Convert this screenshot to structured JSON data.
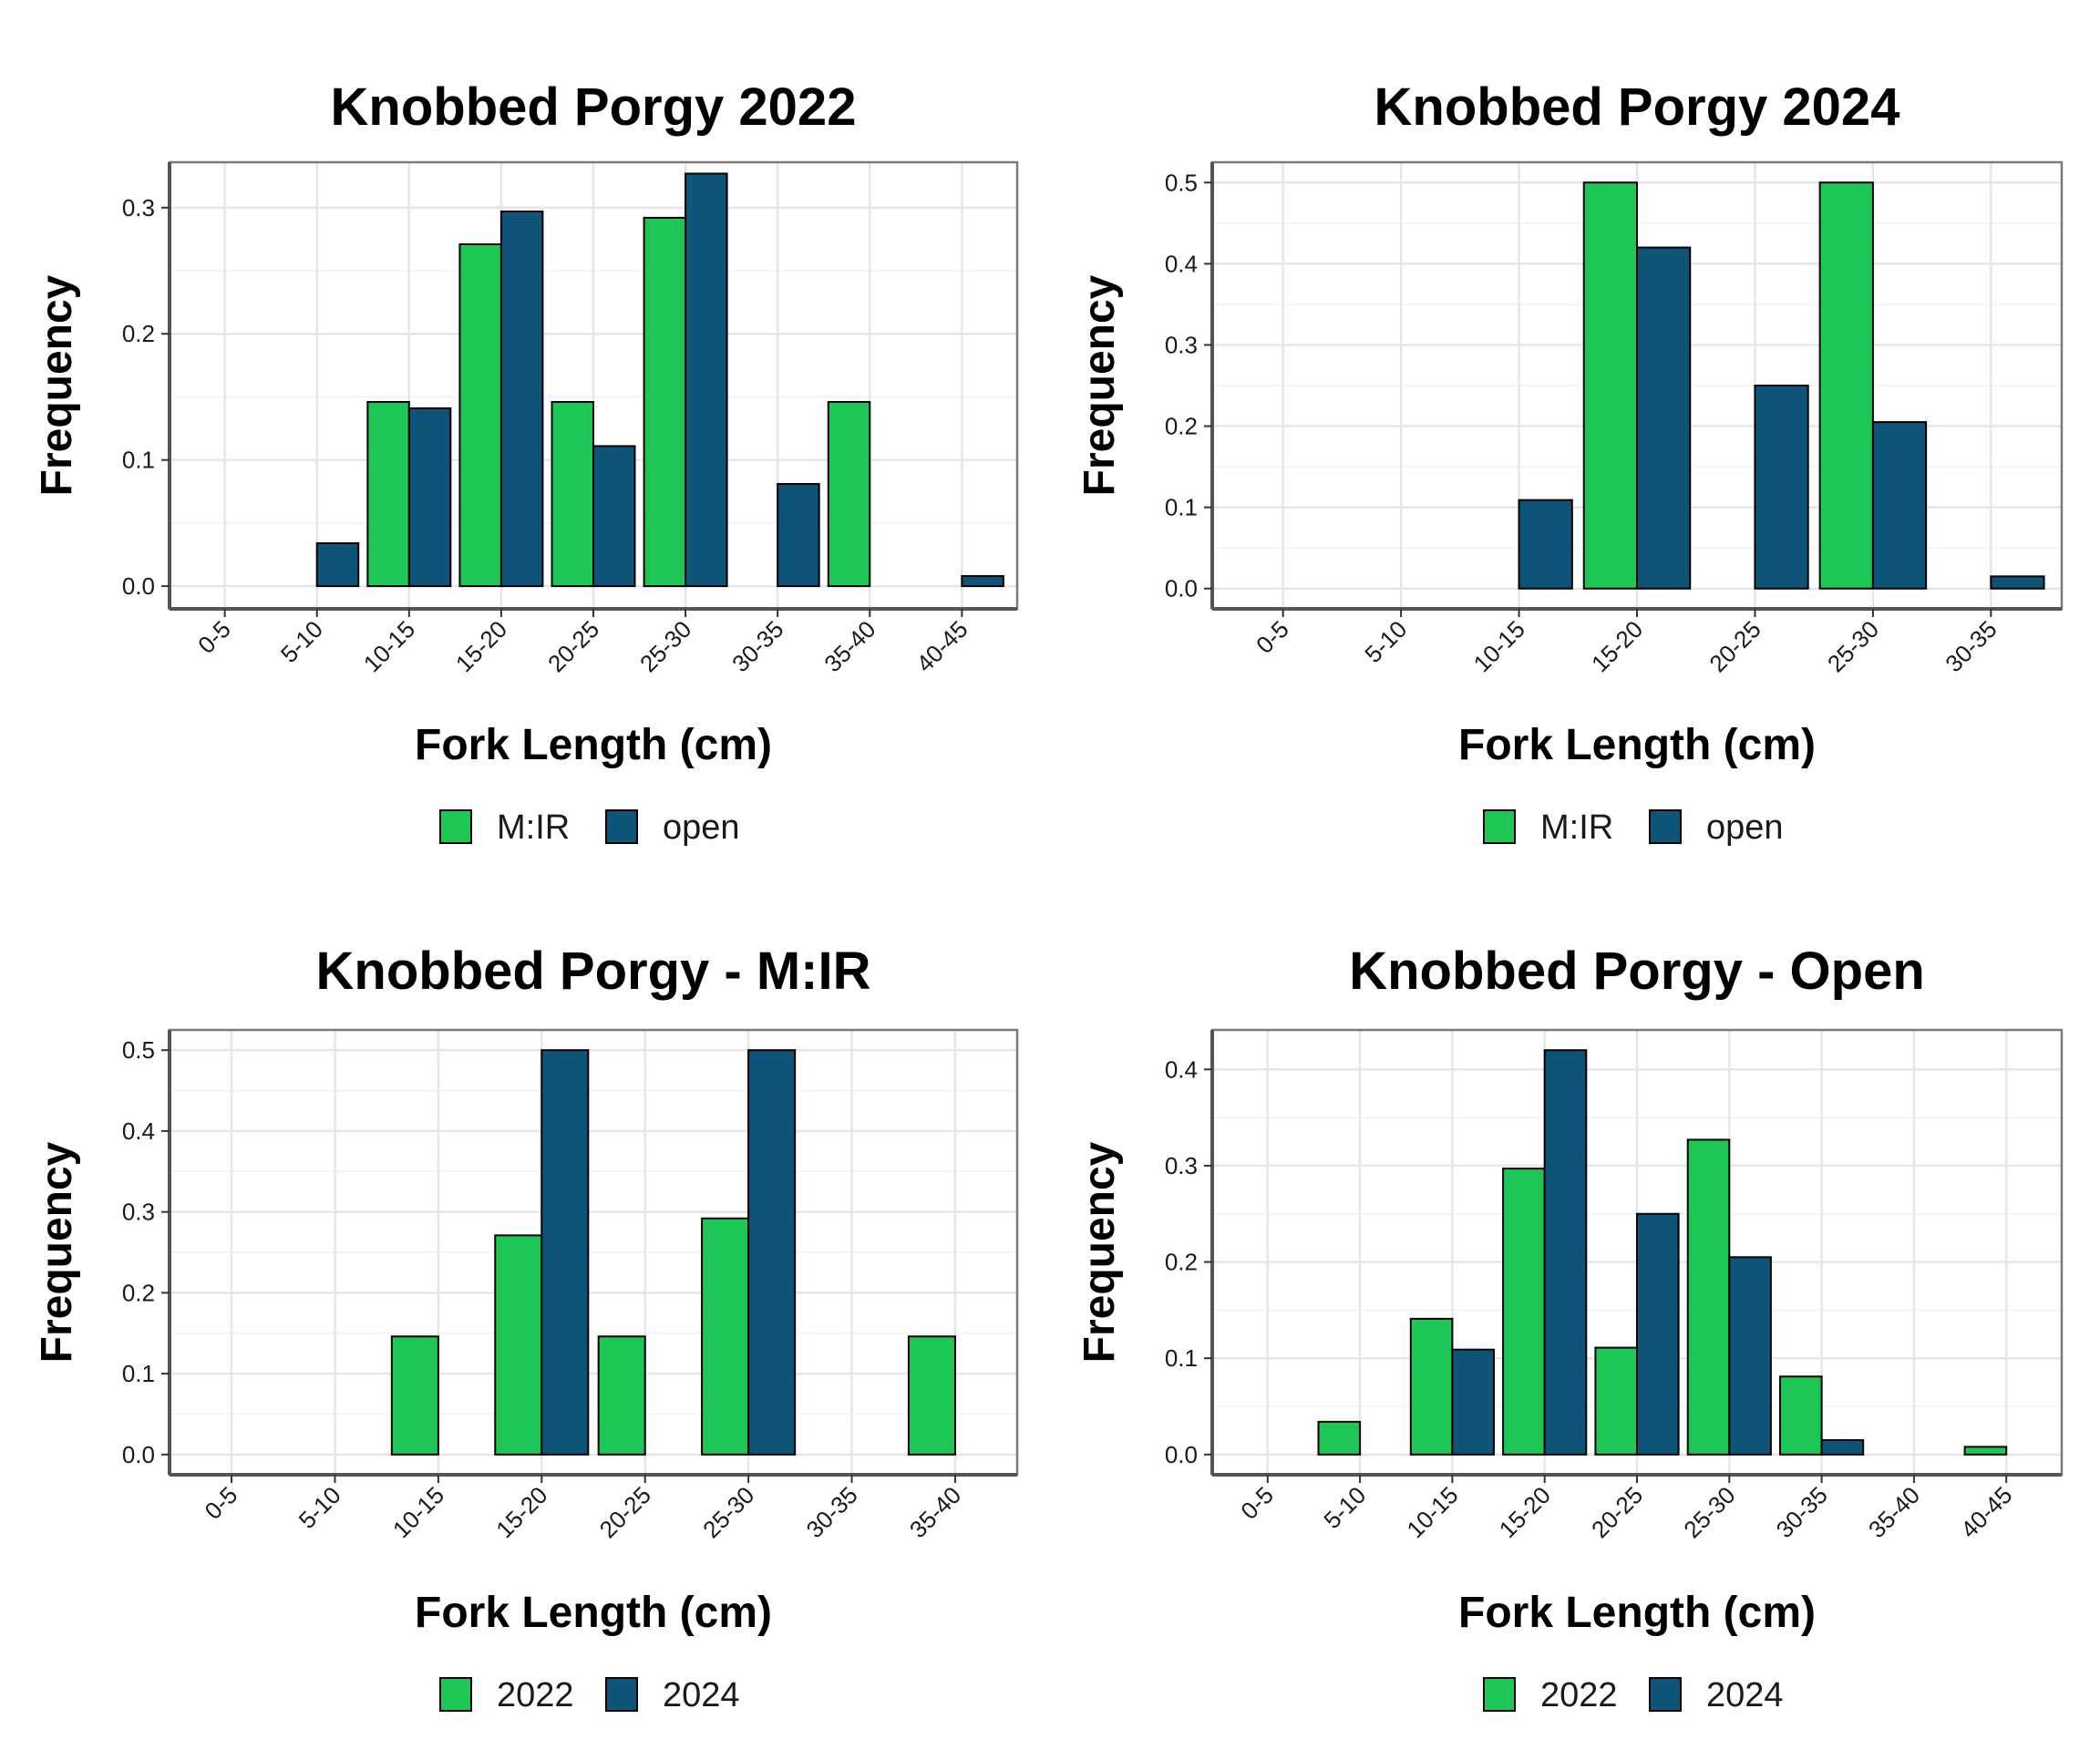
{
  "colors": {
    "series1": "#1ec755",
    "series2": "#0d5478",
    "border": "#000000",
    "grid_major": "#e6e6e6",
    "grid_minor": "#f2f2f2",
    "panel_border": "#7a7a7a"
  },
  "chart_data": [
    {
      "type": "bar",
      "title": "Knobbed Porgy 2022",
      "xlabel": "Fork Length (cm)",
      "ylabel": "Frequency",
      "categories": [
        "0-5",
        "5-10",
        "10-15",
        "15-20",
        "20-25",
        "25-30",
        "30-35",
        "35-40",
        "40-45"
      ],
      "ylim": [
        -0.018,
        0.336
      ],
      "yticks": [
        0.0,
        0.1,
        0.2,
        0.3
      ],
      "grid": true,
      "legend_position": "bottom",
      "series": [
        {
          "name": "M:IR",
          "values": [
            0,
            0,
            0.146,
            0.271,
            0.146,
            0.292,
            0,
            0.146,
            0
          ]
        },
        {
          "name": "open",
          "values": [
            0,
            0.034,
            0.141,
            0.297,
            0.111,
            0.327,
            0.081,
            0,
            0.008
          ]
        }
      ]
    },
    {
      "type": "bar",
      "title": "Knobbed Porgy 2024",
      "xlabel": "Fork Length (cm)",
      "ylabel": "Frequency",
      "categories": [
        "0-5",
        "5-10",
        "10-15",
        "15-20",
        "20-25",
        "25-30",
        "30-35"
      ],
      "ylim": [
        -0.025,
        0.525
      ],
      "yticks": [
        0.0,
        0.1,
        0.2,
        0.3,
        0.4,
        0.5
      ],
      "grid": true,
      "legend_position": "bottom",
      "series": [
        {
          "name": "M:IR",
          "values": [
            0,
            0,
            0,
            0.5,
            0,
            0.5,
            0
          ]
        },
        {
          "name": "open",
          "values": [
            0,
            0,
            0.109,
            0.42,
            0.25,
            0.205,
            0.015
          ]
        }
      ]
    },
    {
      "type": "bar",
      "title": "Knobbed Porgy - M:IR",
      "xlabel": "Fork Length (cm)",
      "ylabel": "Frequency",
      "categories": [
        "0-5",
        "5-10",
        "10-15",
        "15-20",
        "20-25",
        "25-30",
        "30-35",
        "35-40"
      ],
      "ylim": [
        -0.025,
        0.525
      ],
      "yticks": [
        0.0,
        0.1,
        0.2,
        0.3,
        0.4,
        0.5
      ],
      "grid": true,
      "legend_position": "bottom",
      "series": [
        {
          "name": "2022",
          "values": [
            0,
            0,
            0.146,
            0.271,
            0.146,
            0.292,
            0,
            0.146
          ]
        },
        {
          "name": "2024",
          "values": [
            0,
            0,
            0,
            0.5,
            0,
            0.5,
            0,
            0
          ]
        }
      ]
    },
    {
      "type": "bar",
      "title": "Knobbed Porgy - Open",
      "xlabel": "Fork Length (cm)",
      "ylabel": "Frequency",
      "categories": [
        "0-5",
        "5-10",
        "10-15",
        "15-20",
        "20-25",
        "25-30",
        "30-35",
        "35-40",
        "40-45"
      ],
      "ylim": [
        -0.021,
        0.441
      ],
      "yticks": [
        0.0,
        0.1,
        0.2,
        0.3,
        0.4
      ],
      "grid": true,
      "legend_position": "bottom",
      "series": [
        {
          "name": "2022",
          "values": [
            0,
            0.034,
            0.141,
            0.297,
            0.111,
            0.327,
            0.081,
            0,
            0.008
          ]
        },
        {
          "name": "2024",
          "values": [
            0,
            0,
            0.109,
            0.42,
            0.25,
            0.205,
            0.015,
            0,
            0
          ]
        }
      ]
    }
  ]
}
